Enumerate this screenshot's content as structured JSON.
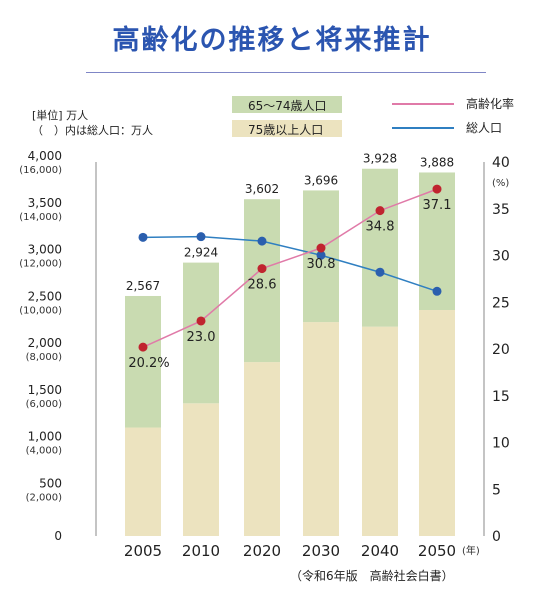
{
  "title": "高齢化の推移と将来推計",
  "unit_label": "[単位] 万人",
  "unit_note": "（　）内は総人口：万人",
  "source": "（令和6年版　高齢社会白書）",
  "legend": {
    "bar_65_74": "65〜74歳人口",
    "bar_75": "75歳以上人口",
    "line_aging": "高齢化率",
    "line_total": "総人口"
  },
  "colors": {
    "bar_65_74": "#c9dbb1",
    "bar_75": "#ece3bf",
    "line_aging": "#e07aa8",
    "line_total": "#2f7fc1",
    "dot_aging": "#c0242f",
    "dot_total": "#2b5fae",
    "title": "#2b55b0"
  },
  "chart_data": {
    "type": "bar",
    "categories": [
      "2005",
      "2010",
      "2020",
      "2030",
      "2040",
      "2050"
    ],
    "x_unit": "(年)",
    "series": [
      {
        "name": "75歳以上人口",
        "values": [
          1160,
          1419,
          1860,
          2288,
          2239,
          2417
        ]
      },
      {
        "name": "65〜74歳人口",
        "values": [
          1407,
          1505,
          1742,
          1408,
          1689,
          1471
        ]
      }
    ],
    "bar_totals": [
      2567,
      2924,
      3602,
      3696,
      3928,
      3888
    ],
    "bar_total_labels": [
      "2,567",
      "2,924",
      "3,602",
      "3,696",
      "3,928",
      "3,888"
    ],
    "aging_rate": [
      20.2,
      23.0,
      28.6,
      30.8,
      34.8,
      37.1
    ],
    "aging_rate_labels": [
      "20.2%",
      "23.0",
      "28.6",
      "30.8",
      "34.8",
      "37.1"
    ],
    "total_population": [
      12777,
      12806,
      12615,
      12012,
      11284,
      10469
    ],
    "y_left": {
      "ylim": [
        0,
        4000
      ],
      "ticks": [
        0,
        500,
        1000,
        1500,
        2000,
        2500,
        3000,
        3500,
        4000
      ],
      "tick_labels": [
        "0",
        "500",
        "1,000",
        "1,500",
        "2,000",
        "2,500",
        "3,000",
        "3,500",
        "4,000"
      ],
      "sub_labels": [
        "",
        "(2,000)",
        "(4,000)",
        "(6,000)",
        "(8,000)",
        "(10,000)",
        "(12,000)",
        "(14,000)",
        "(16,000)"
      ],
      "total_pop_lim": [
        0,
        16000
      ]
    },
    "y_right": {
      "ylim": [
        0,
        40
      ],
      "ticks": [
        0,
        5,
        10,
        15,
        20,
        25,
        30,
        35,
        40
      ],
      "tick_labels": [
        "0",
        "5",
        "10",
        "15",
        "20",
        "25",
        "30",
        "35",
        "40"
      ],
      "unit": "(%)"
    },
    "grid": false,
    "legend_position": "top"
  }
}
